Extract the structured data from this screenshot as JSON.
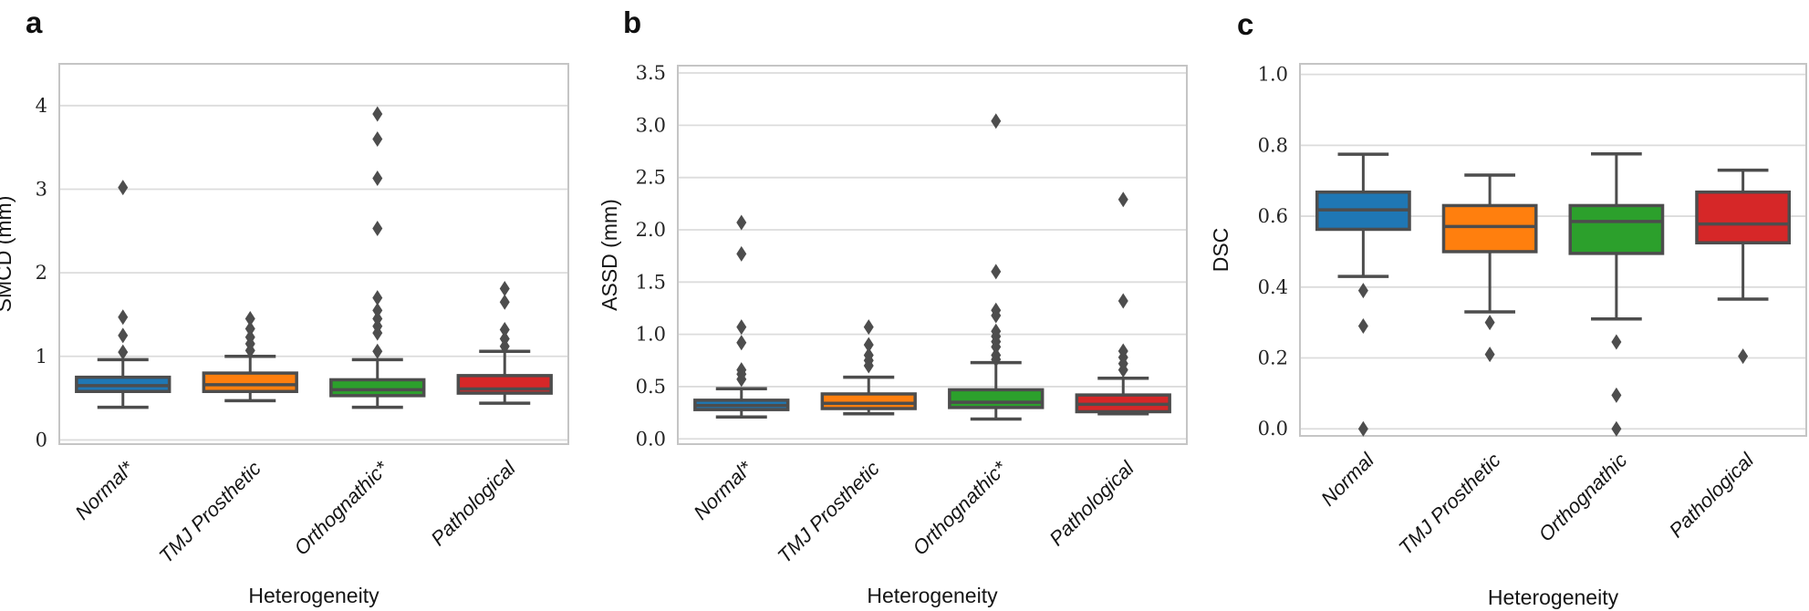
{
  "figure": {
    "background_color": "#ffffff",
    "edge_color": "#4d4d4d",
    "grid_color": "#dcdcdc",
    "frame_color": "#c5c5c5",
    "series_colors": [
      "#1f77b4",
      "#ff7f0e",
      "#2ca02c",
      "#d62728"
    ]
  },
  "chart_data": [
    {
      "panel_letter": "a",
      "type": "box",
      "ylabel": "SMCD (mm)",
      "xlabel": "Heterogeneity",
      "grid": true,
      "legend": false,
      "ylim": [
        -0.05,
        4.5
      ],
      "yticks": [
        0,
        1,
        2,
        3,
        4
      ],
      "ytick_labels": [
        "0",
        "1",
        "2",
        "3",
        "4"
      ],
      "categories": [
        "Normal*",
        "TMJ Prosthetic",
        "Orthognathic*",
        "Pathological"
      ],
      "series": [
        {
          "name": "Normal*",
          "color": "#1f77b4",
          "whislo": 0.39,
          "q1": 0.58,
          "med": 0.65,
          "q3": 0.75,
          "whishi": 0.96,
          "outliers": [
            1.05,
            1.25,
            1.47,
            3.02
          ]
        },
        {
          "name": "TMJ Prosthetic",
          "color": "#ff7f0e",
          "whislo": 0.47,
          "q1": 0.58,
          "med": 0.66,
          "q3": 0.8,
          "whishi": 1.0,
          "outliers": [
            1.07,
            1.15,
            1.23,
            1.33,
            1.45
          ]
        },
        {
          "name": "Orthognathic*",
          "color": "#2ca02c",
          "whislo": 0.39,
          "q1": 0.53,
          "med": 0.6,
          "q3": 0.72,
          "whishi": 0.96,
          "outliers": [
            1.06,
            1.28,
            1.36,
            1.45,
            1.55,
            1.7,
            2.53,
            3.13,
            3.6,
            3.9
          ]
        },
        {
          "name": "Pathological",
          "color": "#d62728",
          "whislo": 0.44,
          "q1": 0.56,
          "med": 0.61,
          "q3": 0.77,
          "whishi": 1.06,
          "outliers": [
            1.12,
            1.21,
            1.32,
            1.65,
            1.81
          ]
        }
      ]
    },
    {
      "panel_letter": "b",
      "type": "box",
      "ylabel": "ASSD (mm)",
      "xlabel": "Heterogeneity",
      "grid": true,
      "legend": false,
      "ylim": [
        -0.05,
        3.57
      ],
      "yticks": [
        0.0,
        0.5,
        1.0,
        1.5,
        2.0,
        2.5,
        3.0,
        3.5
      ],
      "ytick_labels": [
        "0.0",
        "0.5",
        "1.0",
        "1.5",
        "2.0",
        "2.5",
        "3.0",
        "3.5"
      ],
      "categories": [
        "Normal*",
        "TMJ Prosthetic",
        "Orthognathic*",
        "Pathological"
      ],
      "series": [
        {
          "name": "Normal*",
          "color": "#1f77b4",
          "whislo": 0.21,
          "q1": 0.28,
          "med": 0.32,
          "q3": 0.37,
          "whishi": 0.48,
          "outliers": [
            0.57,
            0.62,
            0.66,
            0.92,
            1.07,
            1.77,
            2.07
          ]
        },
        {
          "name": "TMJ Prosthetic",
          "color": "#ff7f0e",
          "whislo": 0.24,
          "q1": 0.29,
          "med": 0.34,
          "q3": 0.43,
          "whishi": 0.59,
          "outliers": [
            0.7,
            0.75,
            0.8,
            0.9,
            1.07
          ]
        },
        {
          "name": "Orthognathic*",
          "color": "#2ca02c",
          "whislo": 0.19,
          "q1": 0.3,
          "med": 0.35,
          "q3": 0.47,
          "whishi": 0.73,
          "outliers": [
            0.76,
            0.8,
            0.88,
            0.93,
            0.98,
            1.03,
            1.18,
            1.23,
            1.6,
            3.04
          ]
        },
        {
          "name": "Pathological",
          "color": "#d62728",
          "whislo": 0.24,
          "q1": 0.26,
          "med": 0.33,
          "q3": 0.42,
          "whishi": 0.58,
          "outliers": [
            0.66,
            0.72,
            0.78,
            0.84,
            1.32,
            2.29
          ]
        }
      ]
    },
    {
      "panel_letter": "c",
      "type": "box",
      "ylabel": "DSC",
      "xlabel": "Heterogeneity",
      "grid": true,
      "legend": false,
      "ylim": [
        -0.02,
        1.03
      ],
      "yticks": [
        0.0,
        0.2,
        0.4,
        0.6,
        0.8,
        1.0
      ],
      "ytick_labels": [
        "0.0",
        "0.2",
        "0.4",
        "0.6",
        "0.8",
        "1.0"
      ],
      "categories": [
        "Normal",
        "TMJ Prosthetic",
        "Orthognathic",
        "Pathological"
      ],
      "series": [
        {
          "name": "Normal",
          "color": "#1f77b4",
          "whislo": 0.43,
          "q1": 0.563,
          "med": 0.618,
          "q3": 0.668,
          "whishi": 0.775,
          "outliers": [
            0.39,
            0.29,
            0.0
          ]
        },
        {
          "name": "TMJ Prosthetic",
          "color": "#ff7f0e",
          "whislo": 0.33,
          "q1": 0.5,
          "med": 0.571,
          "q3": 0.63,
          "whishi": 0.716,
          "outliers": [
            0.3,
            0.21
          ]
        },
        {
          "name": "Orthognathic",
          "color": "#2ca02c",
          "whislo": 0.31,
          "q1": 0.495,
          "med": 0.585,
          "q3": 0.63,
          "whishi": 0.776,
          "outliers": [
            0.245,
            0.095,
            0.0
          ]
        },
        {
          "name": "Pathological",
          "color": "#d62728",
          "whislo": 0.366,
          "q1": 0.525,
          "med": 0.578,
          "q3": 0.668,
          "whishi": 0.73,
          "outliers": [
            0.205
          ]
        }
      ]
    }
  ]
}
